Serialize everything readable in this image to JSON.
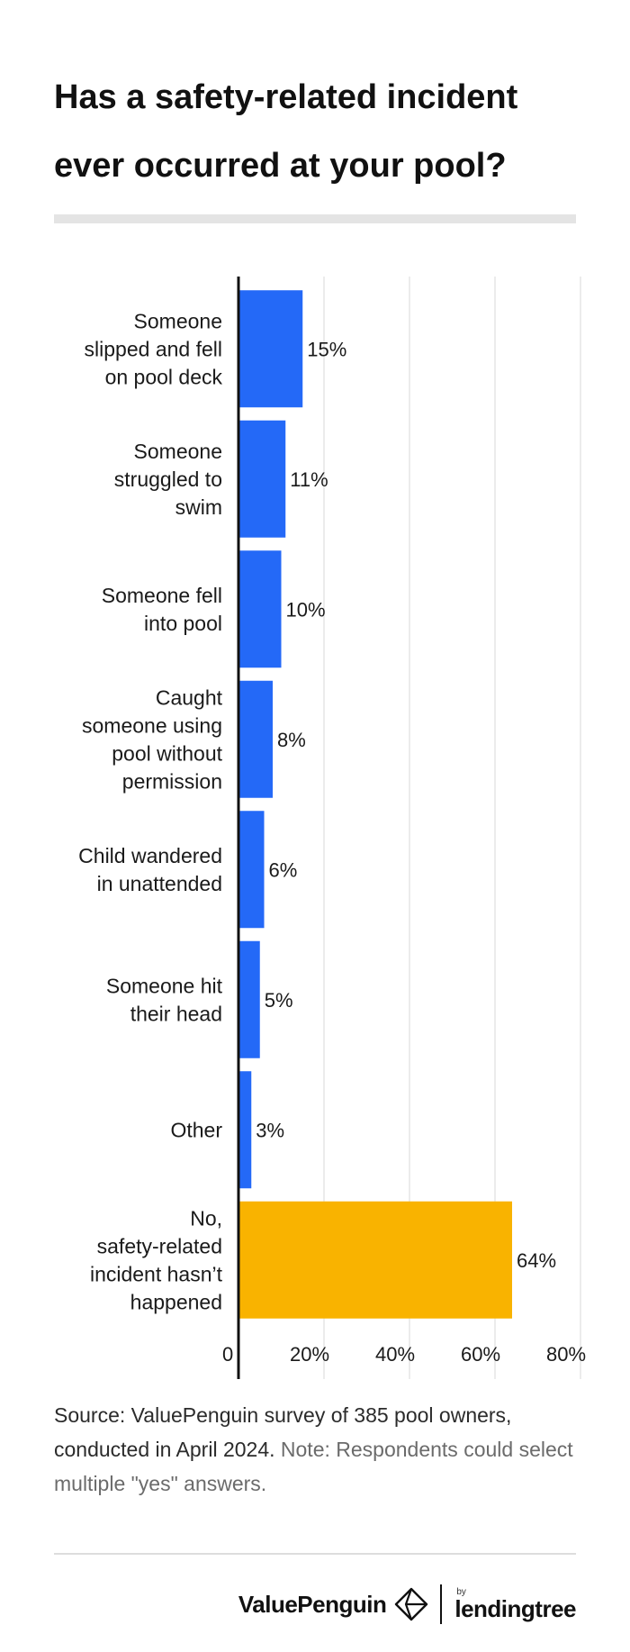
{
  "title": "Has a safety-related incident ever occurred at your pool?",
  "chart_data": {
    "type": "bar",
    "orientation": "horizontal",
    "title": "Has a safety-related incident ever occurred at your pool?",
    "categories": [
      "Someone slipped and fell on pool deck",
      "Someone struggled to swim",
      "Someone fell into pool",
      "Caught someone using pool without permission",
      "Child wandered in unattended",
      "Someone hit their head",
      "Other",
      "No, safety-related incident hasn’t happened"
    ],
    "category_lines": [
      [
        "Someone",
        "slipped and fell",
        "on pool deck"
      ],
      [
        "Someone",
        "struggled to",
        "swim"
      ],
      [
        "Someone fell",
        "into pool"
      ],
      [
        "Caught",
        "someone using",
        "pool without",
        "permission"
      ],
      [
        "Child wandered",
        "in unattended"
      ],
      [
        "Someone hit",
        "their head"
      ],
      [
        "Other"
      ],
      [
        "No,",
        "safety-related",
        "incident hasn’t",
        "happened"
      ]
    ],
    "values": [
      15,
      11,
      10,
      8,
      6,
      5,
      3,
      64
    ],
    "value_labels": [
      "15%",
      "11%",
      "10%",
      "8%",
      "6%",
      "5%",
      "3%",
      "64%"
    ],
    "bar_colors": [
      "#2469f7",
      "#2469f7",
      "#2469f7",
      "#2469f7",
      "#2469f7",
      "#2469f7",
      "#2469f7",
      "#f9b300"
    ],
    "xlim": [
      0,
      80
    ],
    "xticks": [
      0,
      20,
      40,
      60,
      80
    ],
    "xtick_labels": [
      "0",
      "20%",
      "40%",
      "60%",
      "80%"
    ],
    "xlabel": "",
    "ylabel": "",
    "grid": true
  },
  "source": {
    "text": "Source: ValuePenguin survey of 385 pool owners, conducted in April 2024.",
    "note": "Note: Respondents could select multiple \"yes\" answers."
  },
  "logos": {
    "valuepenguin": "ValuePenguin",
    "valuepenguin_icon": "valuepenguin-diamond-icon",
    "by": "by",
    "lendingtree": "lendingtree"
  }
}
